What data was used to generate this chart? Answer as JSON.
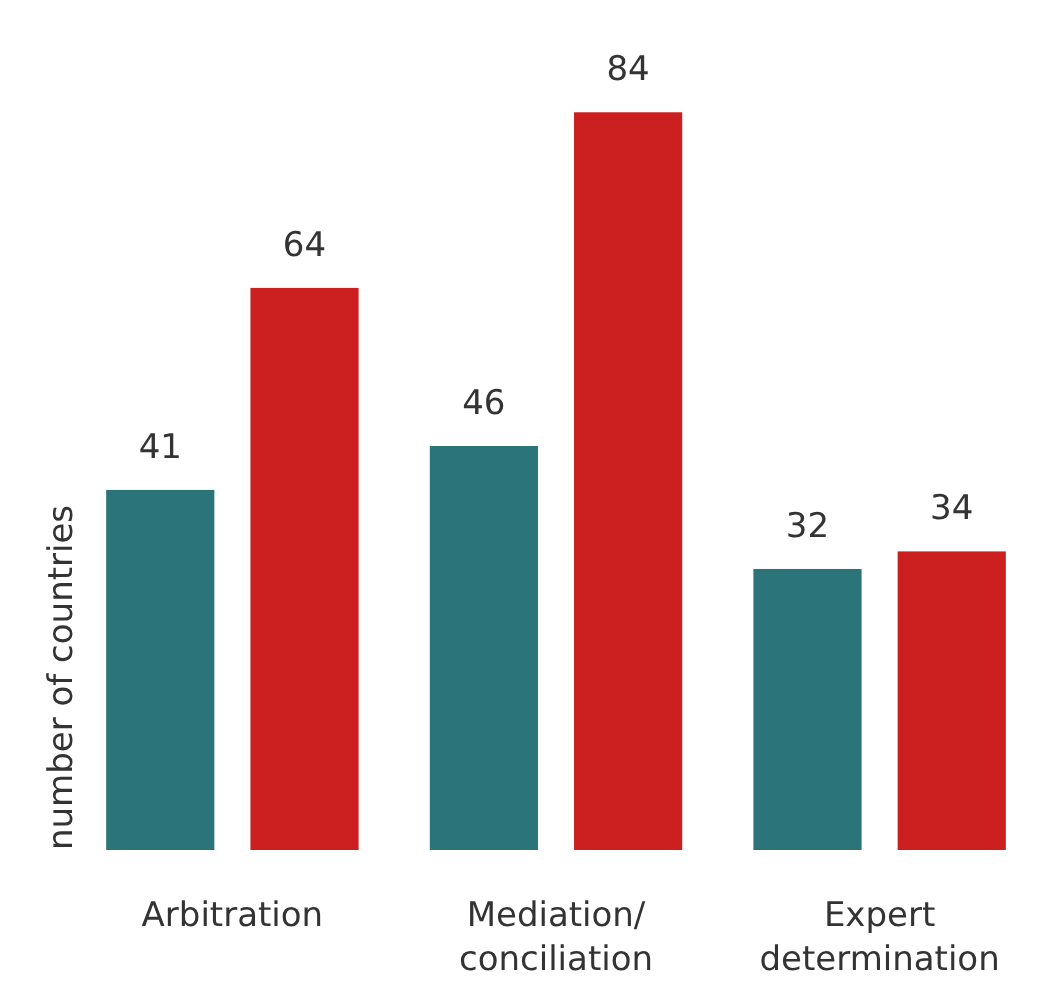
{
  "chart_data": {
    "type": "bar",
    "ylabel": "number of countries",
    "categories": [
      "Arbitration",
      "Mediation/\nconciliation",
      "Expert\ndetermination"
    ],
    "series": [
      {
        "color": "#2b7479",
        "values": [
          41,
          46,
          32
        ]
      },
      {
        "color": "#cc2020",
        "values": [
          64,
          84,
          34
        ]
      }
    ],
    "data_labels": true
  }
}
